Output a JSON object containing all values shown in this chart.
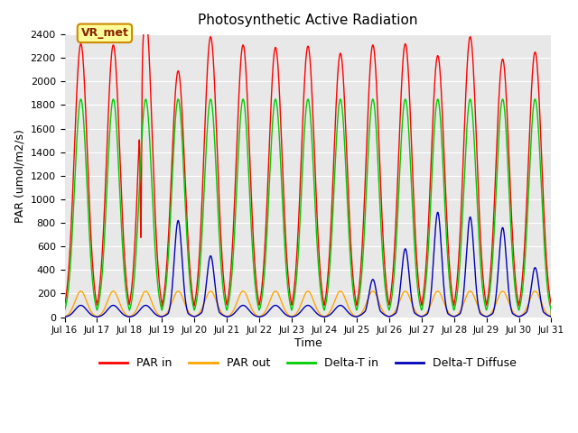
{
  "title": "Photosynthetic Active Radiation",
  "ylabel": "PAR (umol/m2/s)",
  "xlabel": "Time",
  "ylim": [
    0,
    2400
  ],
  "yticks": [
    0,
    200,
    400,
    600,
    800,
    1000,
    1200,
    1400,
    1600,
    1800,
    2000,
    2200,
    2400
  ],
  "bg_color": "#e8e8e8",
  "label_box_text": "VR_met",
  "legend_labels": [
    "PAR in",
    "PAR out",
    "Delta-T in",
    "Delta-T Diffuse"
  ],
  "legend_colors": [
    "#ff0000",
    "#ffa500",
    "#00cc00",
    "#0000bb"
  ],
  "xtick_labels": [
    "Jul 16",
    "Jul 17",
    "Jul 18",
    "Jul 19",
    "Jul 20",
    "Jul 21",
    "Jul 22",
    "Jul 23",
    "Jul 24",
    "Jul 25",
    "Jul 26",
    "Jul 27",
    "Jul 28",
    "Jul 29",
    "Jul 30",
    "Jul 31"
  ],
  "n_days": 15,
  "par_in_peaks": [
    2320,
    2310,
    2550,
    2090,
    2380,
    2310,
    2290,
    2300,
    2240,
    2310,
    2320,
    2220,
    2380,
    2190,
    2250
  ],
  "par_out_peak": 220,
  "delta_t_in_peak": 1850,
  "spike_days": {
    "3": 820,
    "4": 520,
    "9": 320,
    "10": 580,
    "11": 890,
    "12": 850,
    "13": 760,
    "14": 420
  },
  "base_diffuse": 100
}
